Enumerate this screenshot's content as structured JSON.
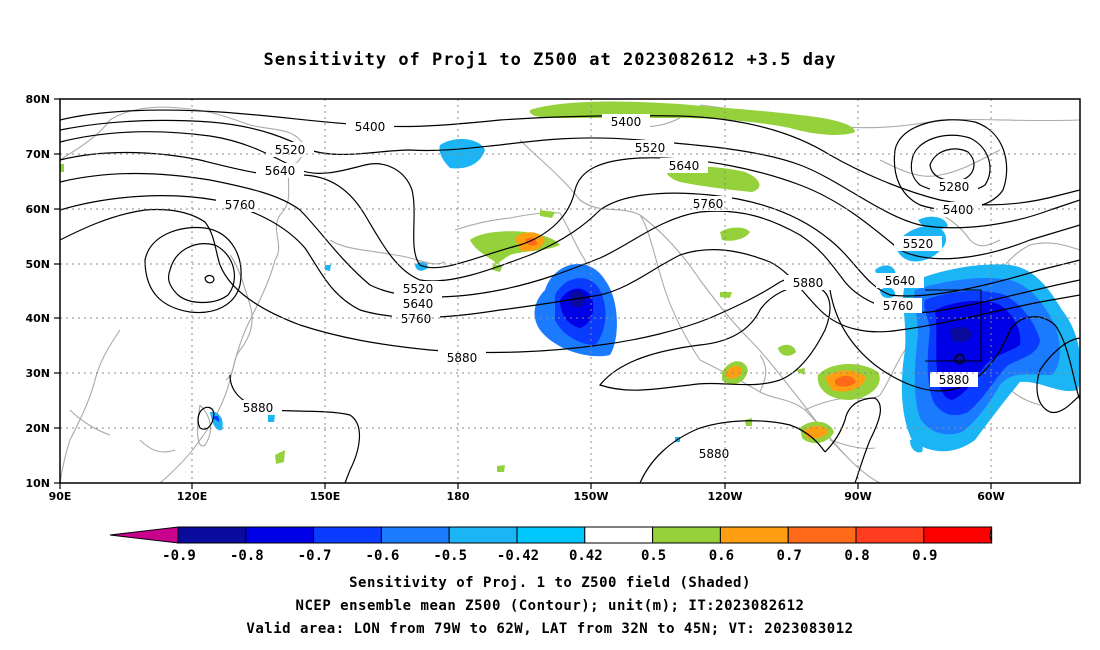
{
  "title": "Sensitivity of Proj1 to Z500 at 2023082612 +3.5 day",
  "captions": [
    "Sensitivity of Proj. 1 to Z500 field (Shaded)",
    "NCEP ensemble mean Z500 (Contour); unit(m); IT:2023082612",
    "Valid area: LON from 79W to 62W, LAT from 32N to 45N; VT: 2023083012"
  ],
  "map": {
    "lon_labels": [
      "90E",
      "120E",
      "150E",
      "180",
      "150W",
      "120W",
      "90W",
      "60W"
    ],
    "lat_labels": [
      "80N",
      "70N",
      "60N",
      "50N",
      "40N",
      "30N",
      "20N",
      "10N"
    ],
    "valid_area": {
      "lon_min": -79,
      "lon_max": -62,
      "lat_min": 32,
      "lat_max": 45
    }
  },
  "contour_labels": [
    "5400",
    "5400",
    "5520",
    "5520",
    "5640",
    "5640",
    "5760",
    "5760",
    "5280",
    "5400",
    "5520",
    "5640",
    "5760",
    "5880",
    "5520",
    "5640",
    "5760",
    "5880",
    "5880",
    "5880",
    "5880"
  ],
  "colorbar": {
    "labels": [
      "-0.9",
      "-0.8",
      "-0.7",
      "-0.6",
      "-0.5",
      "-0.42",
      "0.42",
      "0.5",
      "0.6",
      "0.7",
      "0.8",
      "0.9"
    ],
    "colors": [
      "#c8008c",
      "#0a0a9c",
      "#0000e6",
      "#0a3cff",
      "#1a7bff",
      "#1bb4f5",
      "#00c8ff",
      "#ffffff",
      "#94d13a",
      "#ff9e10",
      "#ff6a1a",
      "#ff3c1e",
      "#ff0000",
      "#ff9ecf"
    ]
  }
}
